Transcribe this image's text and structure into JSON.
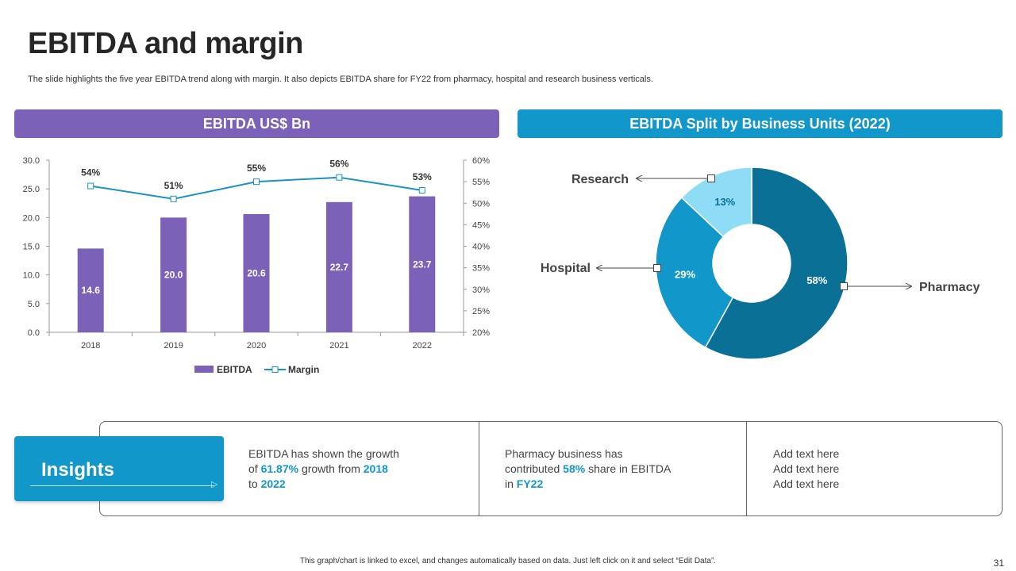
{
  "slide": {
    "title": "EBITDA and margin",
    "subtitle": "The slide highlights the five year EBITDA trend along with margin. It also depicts EBITDA share for FY22 from pharmacy, hospital and research business verticals.",
    "footer_note": "This graph/chart is linked to excel, and changes automatically based on data. Just left click on it and select “Edit Data”.",
    "page_number": "31"
  },
  "colors": {
    "purple": "#7b62b8",
    "blue": "#1197c9",
    "dark_teal": "#0b7096",
    "light_blue": "#8fdcf6",
    "line": "#1a92c4"
  },
  "chart_data": [
    {
      "type": "bar",
      "title": "EBITDA US$ Bn",
      "categories": [
        "2018",
        "2019",
        "2020",
        "2021",
        "2022"
      ],
      "series": [
        {
          "name": "EBITDA",
          "kind": "bar",
          "axis": "left",
          "values": [
            14.6,
            20.0,
            20.6,
            22.7,
            23.7
          ],
          "labels": [
            "14.6",
            "20.0",
            "20.6",
            "22.7",
            "23.7"
          ]
        },
        {
          "name": "Margin",
          "kind": "line",
          "axis": "right",
          "values": [
            54,
            51,
            55,
            56,
            53
          ],
          "labels": [
            "54%",
            "51%",
            "55%",
            "56%",
            "53%"
          ]
        }
      ],
      "ylim": [
        0,
        30
      ],
      "y_ticks": [
        "0.0",
        "5.0",
        "10.0",
        "15.0",
        "20.0",
        "25.0",
        "30.0"
      ],
      "y2lim": [
        20,
        60
      ],
      "y2_ticks": [
        "20%",
        "25%",
        "30%",
        "35%",
        "40%",
        "45%",
        "50%",
        "55%",
        "60%"
      ],
      "legend": [
        "EBITDA",
        "Margin"
      ],
      "legend_position": "bottom"
    },
    {
      "type": "pie",
      "title": "EBITDA Split by Business Units (2022)",
      "slices": [
        {
          "name": "Pharmacy",
          "value": 58,
          "label": "58%"
        },
        {
          "name": "Hospital",
          "value": 29,
          "label": "29%"
        },
        {
          "name": "Research",
          "value": 13,
          "label": "13%"
        }
      ]
    }
  ],
  "insights": {
    "label": "Insights",
    "block1": {
      "t1": "EBITDA has shown the growth",
      "t2": "of ",
      "h1": "61.87%",
      "t3": " growth from ",
      "h2": "2018",
      "t4": "to ",
      "h3": "2022"
    },
    "block2": {
      "t1": "Pharmacy business has",
      "t2": "contributed ",
      "h1": "58%",
      "t3": " share in EBITDA",
      "t4": "in ",
      "h2": "FY22"
    },
    "block3": [
      "Add text here",
      "Add text here",
      "Add text here"
    ]
  }
}
